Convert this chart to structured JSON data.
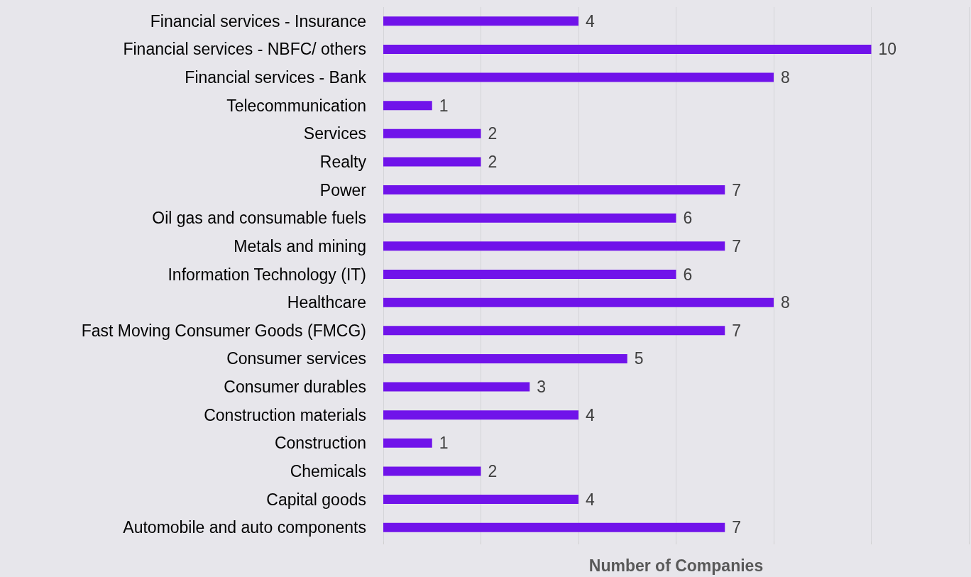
{
  "chart_data": {
    "type": "bar",
    "orientation": "horizontal",
    "xlabel": "Number of Companies",
    "categories": [
      "Financial services - Insurance",
      "Financial services - NBFC/ others",
      "Financial services - Bank",
      "Telecommunication",
      "Services",
      "Realty",
      "Power",
      "Oil gas and consumable fuels",
      "Metals and mining",
      "Information Technology (IT)",
      "Healthcare",
      "Fast Moving Consumer Goods (FMCG)",
      "Consumer services",
      "Consumer durables",
      "Construction materials",
      "Construction",
      "Chemicals",
      "Capital goods",
      "Automobile and auto components"
    ],
    "values": [
      4,
      10,
      8,
      1,
      2,
      2,
      7,
      6,
      7,
      6,
      8,
      7,
      5,
      3,
      4,
      1,
      2,
      4,
      7
    ],
    "color": "#7013ea",
    "xlim": [
      0,
      12
    ],
    "xticks": [
      {
        "value": 0,
        "label": null
      },
      {
        "value": 2,
        "label": null
      },
      {
        "value": 4,
        "label": null
      },
      {
        "value": 6,
        "label": null
      },
      {
        "value": 8,
        "label": null
      },
      {
        "value": 10,
        "label": null
      },
      {
        "value": 12,
        "label": null
      }
    ],
    "tick_labels": "y",
    "grid": "x",
    "data_labels": true
  }
}
